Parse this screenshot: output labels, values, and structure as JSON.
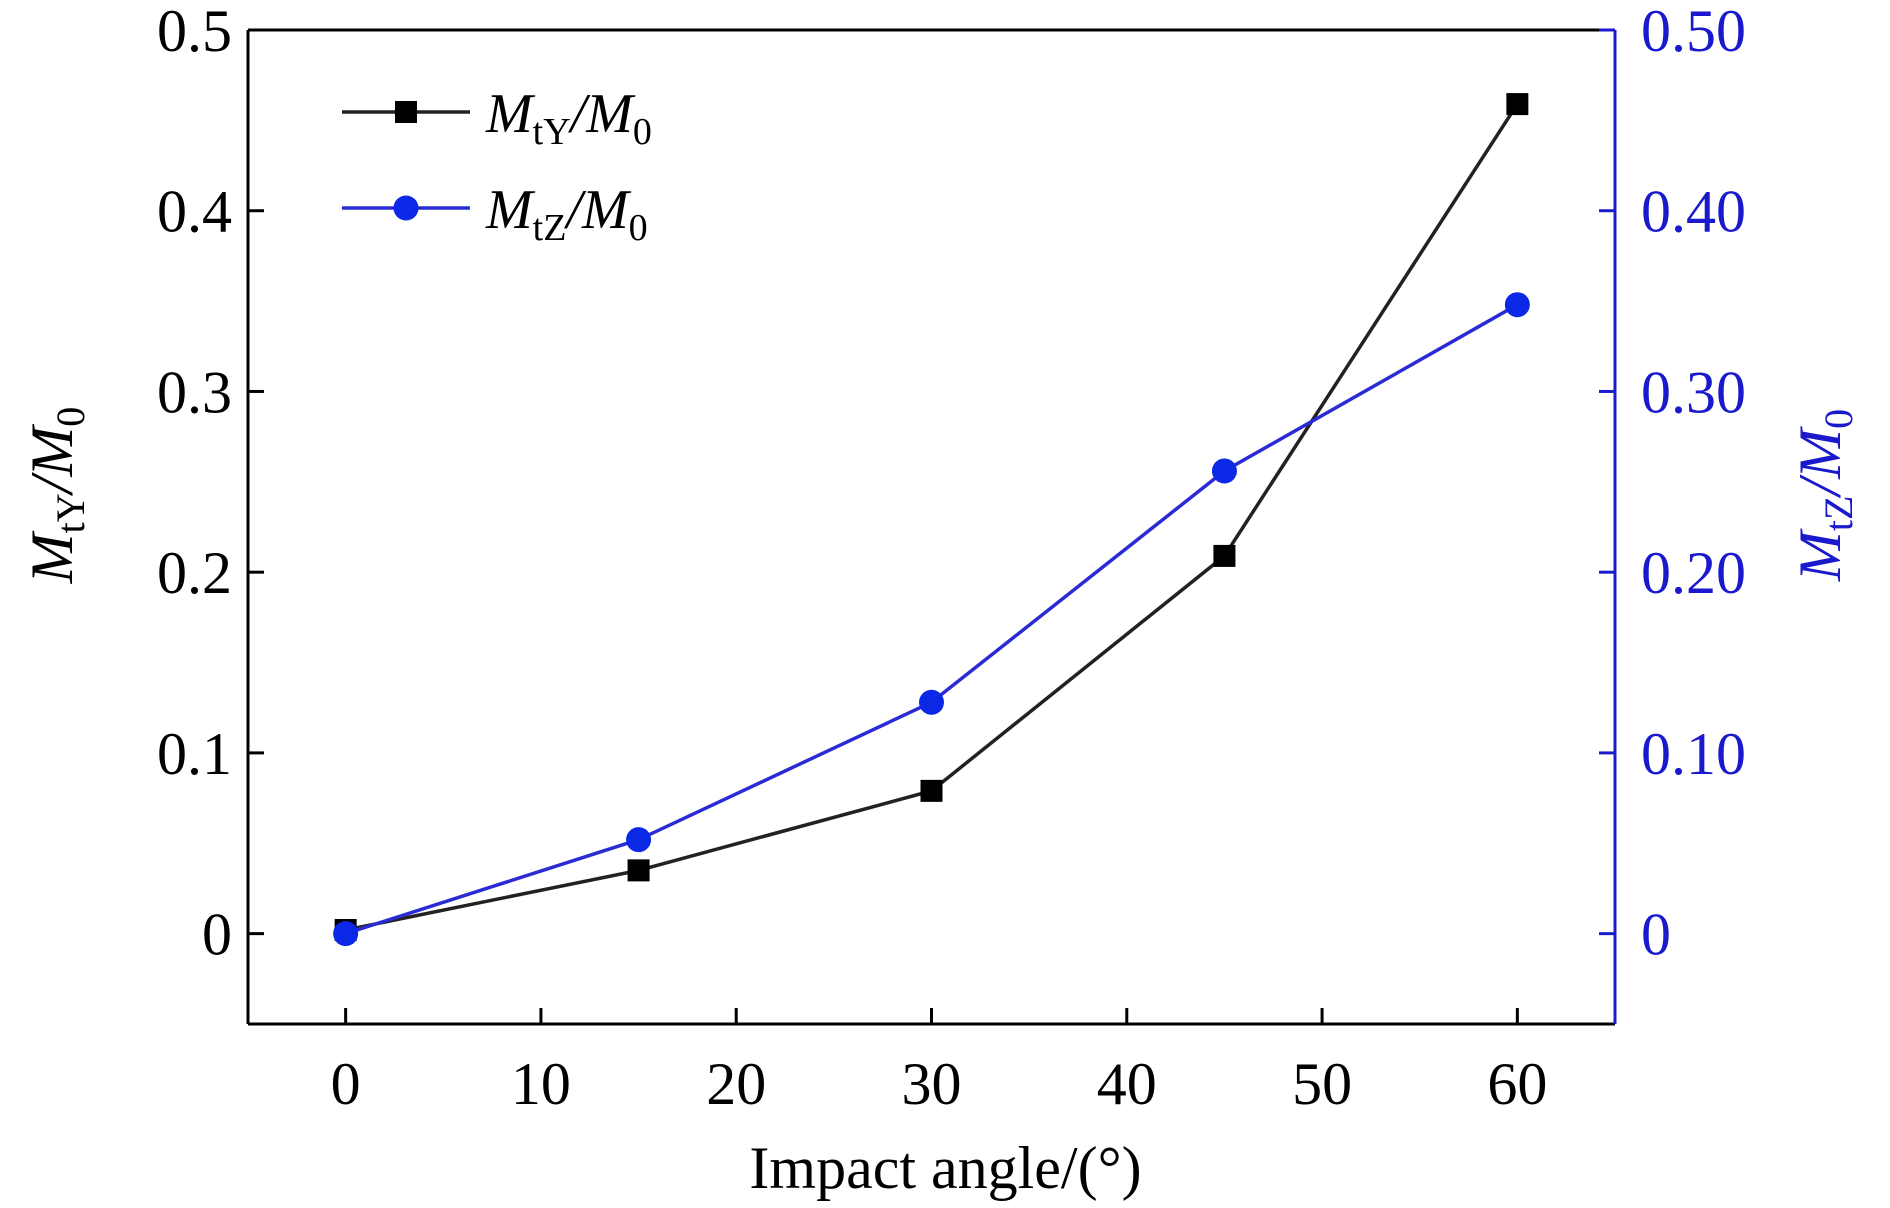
{
  "chart_data": {
    "type": "line",
    "x": [
      0,
      15,
      30,
      45,
      60
    ],
    "xlabel": "Impact angle/(°)",
    "xlim": [
      -5,
      65
    ],
    "xticks": [
      0,
      10,
      20,
      30,
      40,
      50,
      60
    ],
    "y_left": {
      "label_main": "M",
      "label_sub": "tY",
      "label_rest": "/M",
      "label_sub2": "0",
      "lim": [
        -0.05,
        0.5
      ],
      "ticks": [
        0,
        0.1,
        0.2,
        0.3,
        0.4,
        0.5
      ],
      "tick_labels": [
        "0",
        "0.1",
        "0.2",
        "0.3",
        "0.4",
        "0.5"
      ],
      "color": "#000000"
    },
    "y_right": {
      "label_main": "M",
      "label_sub": "tZ",
      "label_rest": "/M",
      "label_sub2": "0",
      "lim": [
        -0.05,
        0.5
      ],
      "ticks": [
        0,
        0.1,
        0.2,
        0.3,
        0.4,
        0.5
      ],
      "tick_labels": [
        "0",
        "0.10",
        "0.20",
        "0.30",
        "0.40",
        "0.50"
      ],
      "color": "#1a1acc"
    },
    "series": [
      {
        "name_main": "M",
        "name_sub": "tY",
        "name_rest": "/M",
        "name_sub2": "0",
        "axis": "left",
        "marker": "square",
        "color": "#000000",
        "line_color": "#222222",
        "values": [
          0.002,
          0.035,
          0.079,
          0.209,
          0.459
        ]
      },
      {
        "name_main": "M",
        "name_sub": "tZ",
        "name_rest": "/M",
        "name_sub2": "0",
        "axis": "right",
        "marker": "circle",
        "color": "#0a28e6",
        "line_color": "#2b2bd6",
        "values": [
          0.0,
          0.052,
          0.128,
          0.256,
          0.348
        ]
      }
    ],
    "legend_position": "top-left",
    "grid": false
  }
}
